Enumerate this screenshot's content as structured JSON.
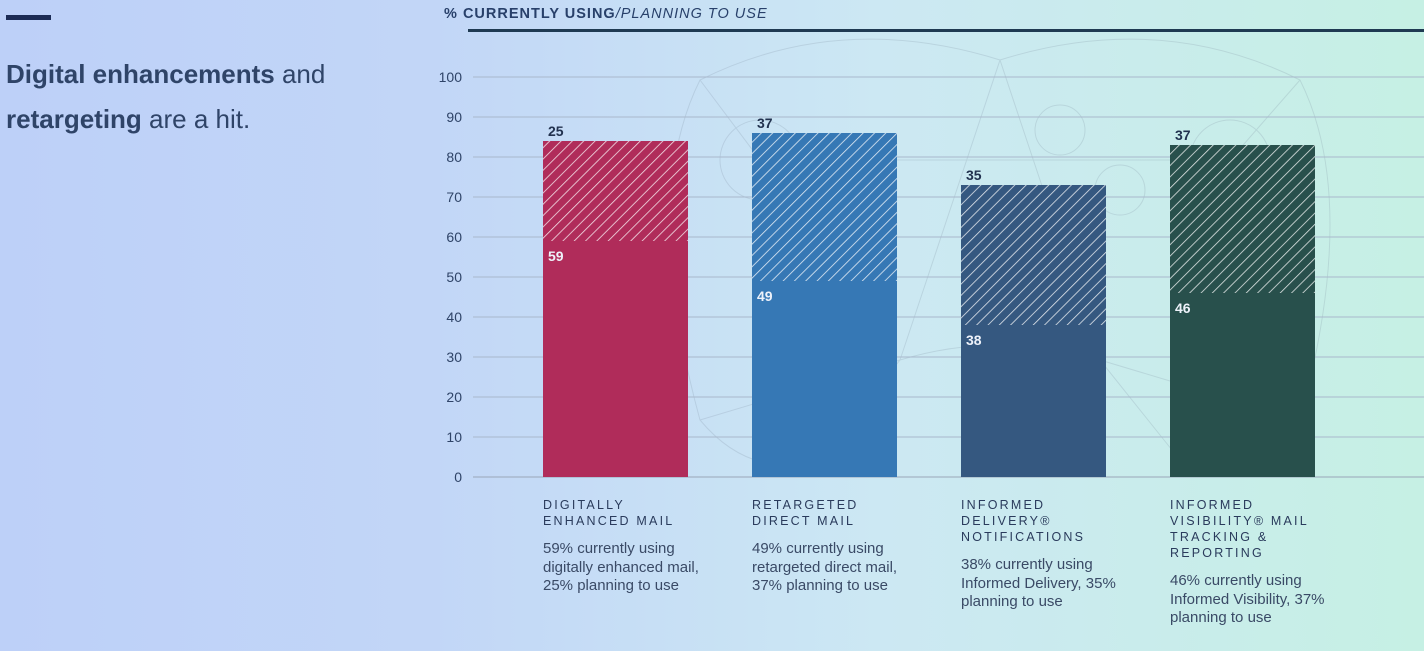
{
  "headline": {
    "part1_bold": "Digital enhancements",
    "part2": " and",
    "part3_bold": "retargeting",
    "part4": " are a hit."
  },
  "chart_heading": {
    "pct": "%",
    "strong": "CURRENTLY USING",
    "rest": "/PLANNING TO USE"
  },
  "chart_data": {
    "type": "bar",
    "stacked": true,
    "categories": [
      "DIGITALLY ENHANCED MAIL",
      "RETARGETED DIRECT MAIL",
      "INFORMED DELIVERY® NOTIFICATIONS",
      "INFORMED VISIBILITY® MAIL TRACKING & REPORTING"
    ],
    "series": [
      {
        "name": "Currently using",
        "values": [
          59,
          49,
          38,
          46
        ]
      },
      {
        "name": "Planning to use",
        "values": [
          25,
          37,
          35,
          37
        ]
      }
    ],
    "bar_colors": [
      "#b02c5a",
      "#3678b5",
      "#355880",
      "#28504c"
    ],
    "ylim": [
      0,
      100
    ],
    "yticks": [
      0,
      10,
      20,
      30,
      40,
      50,
      60,
      70,
      80,
      90,
      100
    ],
    "grid": true,
    "descriptions": [
      "59% currently using digitally enhanced mail, 25% planning to use",
      "49% currently using retargeted direct mail, 37% planning to use",
      "38% currently using Informed Delivery, 35% planning to use",
      "46% currently using Informed Visibility, 37% planning to use"
    ]
  }
}
